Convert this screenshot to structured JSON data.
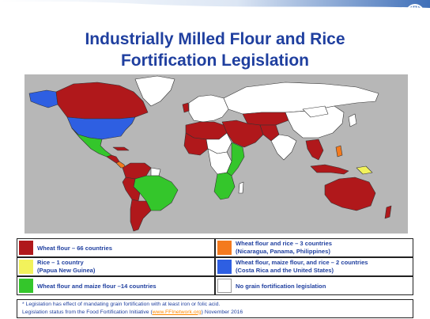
{
  "title_line1": "Industrially Milled Flour and Rice",
  "title_line2": "Fortification Legislation",
  "colors": {
    "wheat": "#b0181b",
    "rice": "#f2f25b",
    "wheat_maize": "#34c62b",
    "wheat_rice": "#f47a1e",
    "wheat_maize_rice": "#2e5fe2",
    "none": "#ffffff",
    "ocean": "#b7b7b7"
  },
  "legend": [
    {
      "id": "wheat",
      "label": "Wheat flour – 66 countries",
      "sub": ""
    },
    {
      "id": "wheat_rice",
      "label": "Wheat flour and rice – 3 countries",
      "sub": "(Nicaragua, Panama, Philippines)"
    },
    {
      "id": "rice",
      "label": "Rice – 1 country",
      "sub": "(Papua New Guinea)"
    },
    {
      "id": "wheat_maize_rice",
      "label": "Wheat flour, maize flour, and rice – 2 countries",
      "sub": "(Costa Rica and the United States)"
    },
    {
      "id": "wheat_maize",
      "label": "Wheat flour and maize flour –14 countries",
      "sub": ""
    },
    {
      "id": "none",
      "label": "No grain fortification legislation",
      "sub": ""
    }
  ],
  "footnote": {
    "line1": "* Legislation has effect of mandating grain fortification with at least iron or folic acid.",
    "line2_prefix": "Legislation status from the Food Fortification Initiative (",
    "link": "www.FFInetwork.org",
    "line2_suffix": ")  November 2016"
  }
}
